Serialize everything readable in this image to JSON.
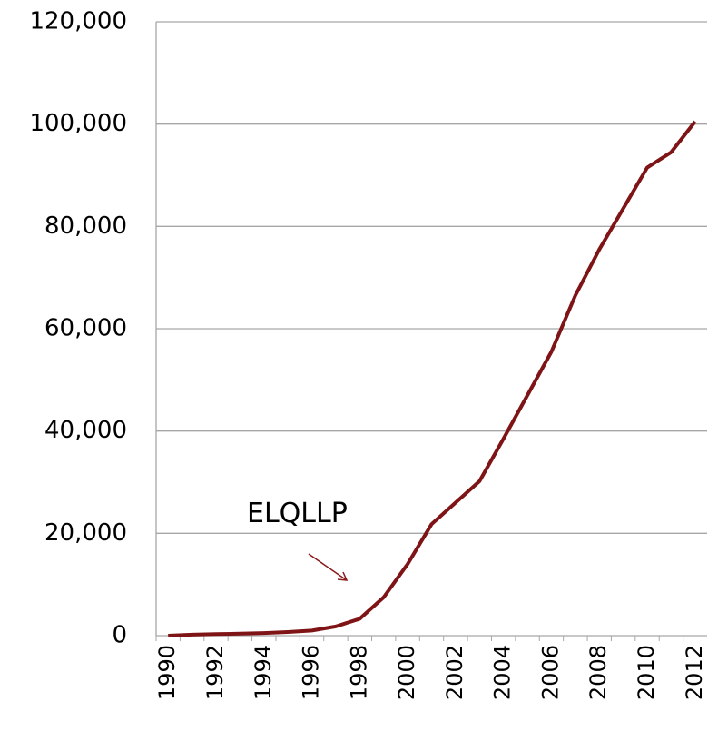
{
  "chart_data": {
    "type": "line",
    "categories": [
      "1990",
      null,
      "1992",
      null,
      "1994",
      null,
      "1996",
      null,
      "1998",
      null,
      "2000",
      null,
      "2002",
      null,
      "2004",
      null,
      "2006",
      null,
      "2008",
      null,
      "2010",
      null,
      "2012"
    ],
    "series": [
      {
        "color": "#7f1416",
        "values": [
          0,
          200,
          300,
          400,
          500,
          700,
          1000,
          1800,
          3300,
          7500,
          14000,
          21800,
          26000,
          30200,
          38500,
          47000,
          55500,
          66500,
          75500,
          83500,
          91500,
          94500,
          100500
        ]
      }
    ],
    "ylim": [
      0,
      120000
    ],
    "yticks": [
      0,
      {
        "value": 20000,
        "label": "20,000"
      },
      {
        "value": 40000,
        "label": "40,000"
      },
      {
        "value": 60000,
        "label": "60,000"
      },
      {
        "value": 80000,
        "label": "80,000"
      },
      {
        "value": 100000,
        "label": "100,000"
      },
      {
        "value": 120000,
        "label": "120,000"
      }
    ],
    "grid": true,
    "annotation": "ELQLLP"
  }
}
